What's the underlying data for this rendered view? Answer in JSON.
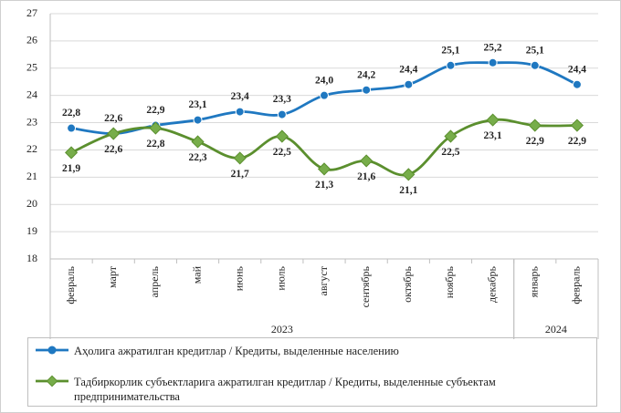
{
  "chart_data": {
    "type": "line",
    "groups": [
      {
        "label": "2023",
        "categories": [
          "февраль",
          "март",
          "апрель",
          "май",
          "июнь",
          "июль",
          "август",
          "сентябрь",
          "октябрь",
          "ноябрь",
          "декабрь"
        ]
      },
      {
        "label": "2024",
        "categories": [
          "январь",
          "февраль"
        ]
      }
    ],
    "series": [
      {
        "name": "Аҳолига ажратилган кредитлар / Кредиты, выделенные населению",
        "color": "#1f78c1",
        "values": [
          22.8,
          22.6,
          22.9,
          23.1,
          23.4,
          23.3,
          24.0,
          24.2,
          24.4,
          25.1,
          25.2,
          25.1,
          24.4
        ],
        "value_labels": [
          "22,8",
          "22,6",
          "22,9",
          "23,1",
          "23,4",
          "23,3",
          "24,0",
          "24,2",
          "24,4",
          "25,1",
          "25,2",
          "25,1",
          "24,4"
        ]
      },
      {
        "name": "Тадбиркорлик субъектларига ажратилган кредитлар / Кредиты, выделенные субъектам предпринимательства",
        "color": "#5b8f2e",
        "values": [
          21.9,
          22.6,
          22.8,
          22.3,
          21.7,
          22.5,
          21.3,
          21.6,
          21.1,
          22.5,
          23.1,
          22.9,
          22.9
        ],
        "value_labels": [
          "21,9",
          "22,6",
          "22,8",
          "22,3",
          "21,7",
          "22,5",
          "21,3",
          "21,6",
          "21,1",
          "22,5",
          "23,1",
          "22,9",
          "22,9"
        ]
      }
    ],
    "ylim": [
      18,
      27
    ],
    "yticks": [
      18,
      19,
      20,
      21,
      22,
      23,
      24,
      25,
      26,
      27
    ],
    "grid": true
  }
}
